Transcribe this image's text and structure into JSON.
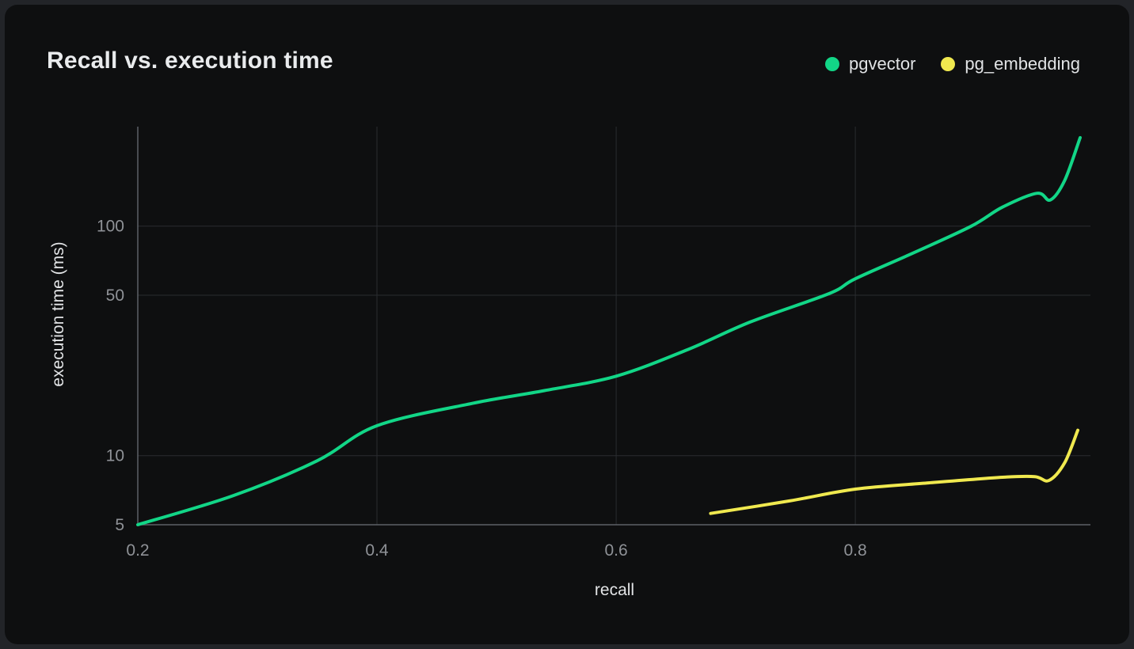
{
  "card": {
    "title": "Recall vs. execution time"
  },
  "legend": [
    {
      "label": "pgvector",
      "color": "#12d687"
    },
    {
      "label": "pg_embedding",
      "color": "#f0e94f"
    }
  ],
  "axes": {
    "x_label": "recall",
    "y_label": "execution time (ms)"
  },
  "colors": {
    "card_background": "#0e0f10",
    "page_background": "#222428",
    "grid_line": "#2a2c30",
    "axis_line": "#5d6167",
    "tick_text": "#8f9297",
    "title_text": "#e9ebed"
  },
  "chart_data": {
    "type": "line",
    "title": "Recall vs. execution time",
    "xlabel": "recall",
    "ylabel": "execution time (ms)",
    "y_scale": "log",
    "grid": true,
    "legend_position": "top-right",
    "xlim": [
      0.2,
      0.9966
    ],
    "ylim": [
      5,
      271
    ],
    "x_ticks": [
      0.2,
      0.4,
      0.6,
      0.8
    ],
    "y_ticks": [
      5,
      10,
      50,
      100
    ],
    "series": [
      {
        "name": "pgvector",
        "color": "#12d687",
        "points": [
          [
            0.2,
            5.0
          ],
          [
            0.28,
            6.7
          ],
          [
            0.35,
            9.5
          ],
          [
            0.4,
            13.5
          ],
          [
            0.48,
            16.9
          ],
          [
            0.54,
            19.2
          ],
          [
            0.6,
            22.2
          ],
          [
            0.66,
            29.0
          ],
          [
            0.712,
            38.2
          ],
          [
            0.778,
            50.8
          ],
          [
            0.8,
            59.0
          ],
          [
            0.85,
            77.0
          ],
          [
            0.897,
            100.0
          ],
          [
            0.923,
            121.0
          ],
          [
            0.952,
            139.0
          ],
          [
            0.963,
            130.0
          ],
          [
            0.975,
            158.0
          ],
          [
            0.988,
            243.0
          ]
        ]
      },
      {
        "name": "pg_embedding",
        "color": "#f0e94f",
        "points": [
          [
            0.679,
            5.6
          ],
          [
            0.745,
            6.35
          ],
          [
            0.8,
            7.15
          ],
          [
            0.86,
            7.6
          ],
          [
            0.923,
            8.05
          ],
          [
            0.95,
            8.1
          ],
          [
            0.962,
            7.8
          ],
          [
            0.975,
            9.3
          ],
          [
            0.986,
            12.9
          ]
        ]
      }
    ]
  }
}
